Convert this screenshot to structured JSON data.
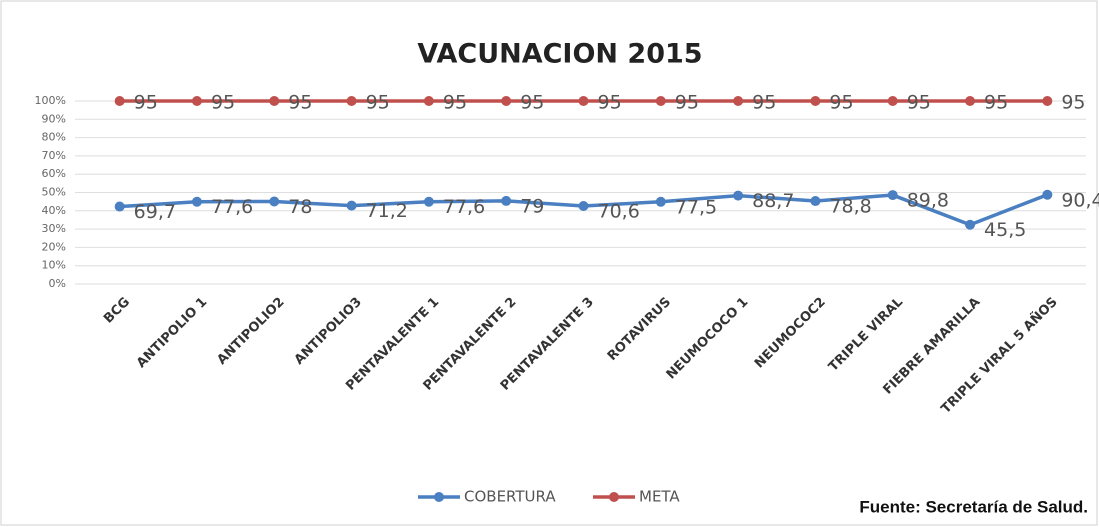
{
  "chart_data": {
    "type": "line",
    "stacking": "percent",
    "title": "VACUNACION 2015",
    "categories": [
      "BCG",
      "ANTIPOLIO 1",
      "ANTIPOLIO2",
      "ANTIPOLIO3",
      "PENTAVALENTE 1",
      "PENTAVALENTE 2",
      "PENTAVALENTE 3",
      "ROTAVIRUS",
      "NEUMOCOCO 1",
      "NEUMOCOC2",
      "TRIPLE VIRAL",
      "FIEBRE AMARILLA",
      "TRIPLE VIRAL 5 AÑOS"
    ],
    "series": [
      {
        "name": "COBERTURA",
        "color": "#4a7fc1",
        "values": [
          69.7,
          77.6,
          78,
          71.2,
          77.6,
          79,
          70.6,
          77.5,
          88.7,
          78.8,
          89.8,
          45.5,
          90.4
        ],
        "value_labels": [
          "69,7",
          "77,6",
          "78",
          "71,2",
          "77,6",
          "79",
          "70,6",
          "77,5",
          "88,7",
          "78,8",
          "89,8",
          "45,5",
          "90,4"
        ]
      },
      {
        "name": "META",
        "color": "#c0504d",
        "values": [
          95,
          95,
          95,
          95,
          95,
          95,
          95,
          95,
          95,
          95,
          95,
          95,
          95
        ]
      }
    ],
    "ylim": [
      0,
      100
    ],
    "yticks": [
      {
        "value": 0,
        "label": "0%"
      },
      {
        "value": 10,
        "label": "10%"
      },
      {
        "value": 20,
        "label": "20%"
      },
      {
        "value": 30,
        "label": "30%"
      },
      {
        "value": 40,
        "label": "40%"
      },
      {
        "value": 50,
        "label": "50%"
      },
      {
        "value": 60,
        "label": "60%"
      },
      {
        "value": 70,
        "label": "70%"
      },
      {
        "value": 80,
        "label": "80%"
      },
      {
        "value": 90,
        "label": "90%"
      },
      {
        "value": 100,
        "label": "100%"
      }
    ],
    "grid": true,
    "legend": "bottom",
    "source": "Fuente: Secretaría de Salud."
  }
}
